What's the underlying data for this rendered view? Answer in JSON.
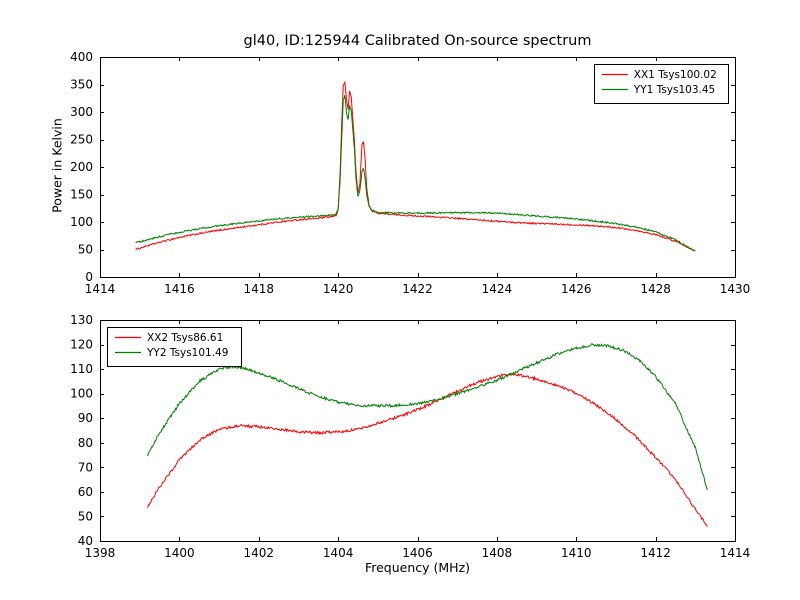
{
  "figure": {
    "background": "#ffffff"
  },
  "chart_data": [
    {
      "type": "line",
      "title": "gl40, ID:125944 Calibrated On-source spectrum",
      "xlabel": "",
      "ylabel": "Power in Kelvin",
      "xlim": [
        1414,
        1430
      ],
      "ylim": [
        0,
        400
      ],
      "xticks": [
        1414,
        1416,
        1418,
        1420,
        1422,
        1424,
        1426,
        1428,
        1430
      ],
      "yticks": [
        0,
        50,
        100,
        150,
        200,
        250,
        300,
        350,
        400
      ],
      "grid": false,
      "legend_position": "top-right",
      "series": [
        {
          "name": "XX1 Tsys100.02",
          "color": "#ff0000",
          "noise": 1.4,
          "points": [
            [
              1414.9,
              50
            ],
            [
              1415.2,
              57
            ],
            [
              1415.6,
              65
            ],
            [
              1416,
              72
            ],
            [
              1416.5,
              79
            ],
            [
              1417,
              85
            ],
            [
              1417.5,
              90
            ],
            [
              1418,
              95
            ],
            [
              1418.5,
              100
            ],
            [
              1419,
              104
            ],
            [
              1419.5,
              107
            ],
            [
              1419.8,
              109
            ],
            [
              1419.95,
              112
            ],
            [
              1420.0,
              122
            ],
            [
              1420.05,
              190
            ],
            [
              1420.09,
              280
            ],
            [
              1420.13,
              348
            ],
            [
              1420.17,
              355
            ],
            [
              1420.21,
              322
            ],
            [
              1420.25,
              305
            ],
            [
              1420.29,
              338
            ],
            [
              1420.33,
              328
            ],
            [
              1420.37,
              288
            ],
            [
              1420.41,
              248
            ],
            [
              1420.45,
              192
            ],
            [
              1420.5,
              152
            ],
            [
              1420.55,
              172
            ],
            [
              1420.6,
              240
            ],
            [
              1420.64,
              246
            ],
            [
              1420.68,
              214
            ],
            [
              1420.72,
              162
            ],
            [
              1420.78,
              130
            ],
            [
              1420.85,
              120
            ],
            [
              1421,
              116
            ],
            [
              1421.5,
              113
            ],
            [
              1422,
              111
            ],
            [
              1422.5,
              109
            ],
            [
              1423,
              106.5
            ],
            [
              1423.5,
              104
            ],
            [
              1424,
              101.5
            ],
            [
              1424.5,
              99
            ],
            [
              1425,
              97.5
            ],
            [
              1425.5,
              96
            ],
            [
              1426,
              95
            ],
            [
              1426.5,
              93
            ],
            [
              1427,
              90
            ],
            [
              1427.5,
              85
            ],
            [
              1428,
              77
            ],
            [
              1428.5,
              65
            ],
            [
              1429,
              48
            ]
          ]
        },
        {
          "name": "YY1 Tsys103.45",
          "color": "#008000",
          "noise": 1.4,
          "points": [
            [
              1414.9,
              62
            ],
            [
              1415.2,
              68
            ],
            [
              1415.6,
              75
            ],
            [
              1416,
              81
            ],
            [
              1416.5,
              88
            ],
            [
              1417,
              93
            ],
            [
              1417.5,
              98
            ],
            [
              1418,
              102
            ],
            [
              1418.5,
              106
            ],
            [
              1419,
              109
            ],
            [
              1419.5,
              111
            ],
            [
              1419.8,
              112.5
            ],
            [
              1419.95,
              114
            ],
            [
              1420.0,
              124
            ],
            [
              1420.05,
              175
            ],
            [
              1420.09,
              250
            ],
            [
              1420.13,
              322
            ],
            [
              1420.17,
              330
            ],
            [
              1420.21,
              298
            ],
            [
              1420.25,
              285
            ],
            [
              1420.29,
              312
            ],
            [
              1420.33,
              303
            ],
            [
              1420.37,
              268
            ],
            [
              1420.41,
              232
            ],
            [
              1420.45,
              178
            ],
            [
              1420.5,
              146
            ],
            [
              1420.55,
              158
            ],
            [
              1420.6,
              192
            ],
            [
              1420.64,
              198
            ],
            [
              1420.68,
              178
            ],
            [
              1420.72,
              150
            ],
            [
              1420.78,
              128
            ],
            [
              1420.85,
              121
            ],
            [
              1421,
              118
            ],
            [
              1421.5,
              116.5
            ],
            [
              1422,
              116
            ],
            [
              1422.5,
              116.5
            ],
            [
              1423,
              117
            ],
            [
              1423.5,
              117
            ],
            [
              1424,
              116
            ],
            [
              1424.5,
              113.5
            ],
            [
              1425,
              111
            ],
            [
              1425.5,
              108.5
            ],
            [
              1426,
              105.5
            ],
            [
              1426.5,
              101.5
            ],
            [
              1427,
              97
            ],
            [
              1427.5,
              91
            ],
            [
              1428,
              82
            ],
            [
              1428.5,
              68
            ],
            [
              1429,
              46
            ]
          ]
        }
      ]
    },
    {
      "type": "line",
      "title": "",
      "xlabel": "Frequency (MHz)",
      "ylabel": "",
      "xlim": [
        1398,
        1414
      ],
      "ylim": [
        40,
        130
      ],
      "xticks": [
        1398,
        1400,
        1402,
        1404,
        1406,
        1408,
        1410,
        1412,
        1414
      ],
      "yticks": [
        40,
        50,
        60,
        70,
        80,
        90,
        100,
        110,
        120,
        130
      ],
      "grid": false,
      "legend_position": "top-left",
      "series": [
        {
          "name": "XX2 Tsys86.61",
          "color": "#ff0000",
          "noise": 0.55,
          "points": [
            [
              1399.2,
              54
            ],
            [
              1399.5,
              62
            ],
            [
              1400,
              73
            ],
            [
              1400.5,
              81
            ],
            [
              1401,
              85.5
            ],
            [
              1401.5,
              87
            ],
            [
              1402,
              86.5
            ],
            [
              1402.5,
              85.5
            ],
            [
              1403,
              84.5
            ],
            [
              1403.5,
              84
            ],
            [
              1404,
              84.5
            ],
            [
              1404.5,
              85.5
            ],
            [
              1405,
              88
            ],
            [
              1405.5,
              90.5
            ],
            [
              1406,
              93.5
            ],
            [
              1406.5,
              97
            ],
            [
              1407,
              101
            ],
            [
              1407.5,
              104.5
            ],
            [
              1408,
              107
            ],
            [
              1408.3,
              108
            ],
            [
              1408.6,
              107.5
            ],
            [
              1409,
              106
            ],
            [
              1409.5,
              103.5
            ],
            [
              1410,
              100
            ],
            [
              1410.5,
              95.5
            ],
            [
              1411,
              89.5
            ],
            [
              1411.5,
              82.5
            ],
            [
              1412,
              74
            ],
            [
              1412.5,
              65
            ],
            [
              1413,
              53
            ],
            [
              1413.3,
              46
            ]
          ]
        },
        {
          "name": "YY2 Tsys101.49",
          "color": "#008000",
          "noise": 0.55,
          "points": [
            [
              1399.2,
              75
            ],
            [
              1399.5,
              84
            ],
            [
              1400,
              96
            ],
            [
              1400.5,
              105
            ],
            [
              1401,
              110
            ],
            [
              1401.3,
              111
            ],
            [
              1401.6,
              110.5
            ],
            [
              1402,
              108.5
            ],
            [
              1402.5,
              105.5
            ],
            [
              1403,
              102
            ],
            [
              1403.5,
              99
            ],
            [
              1404,
              96.5
            ],
            [
              1404.5,
              95.2
            ],
            [
              1405,
              95
            ],
            [
              1405.5,
              95.2
            ],
            [
              1406,
              96
            ],
            [
              1406.5,
              97.5
            ],
            [
              1407,
              100
            ],
            [
              1407.5,
              102.5
            ],
            [
              1408,
              105.5
            ],
            [
              1408.5,
              109
            ],
            [
              1409,
              112.5
            ],
            [
              1409.5,
              116
            ],
            [
              1410,
              118.5
            ],
            [
              1410.4,
              119.8
            ],
            [
              1410.8,
              119.5
            ],
            [
              1411.2,
              117.5
            ],
            [
              1411.6,
              113.5
            ],
            [
              1412,
              107
            ],
            [
              1412.5,
              96
            ],
            [
              1413,
              78
            ],
            [
              1413.3,
              61
            ]
          ]
        }
      ]
    }
  ]
}
